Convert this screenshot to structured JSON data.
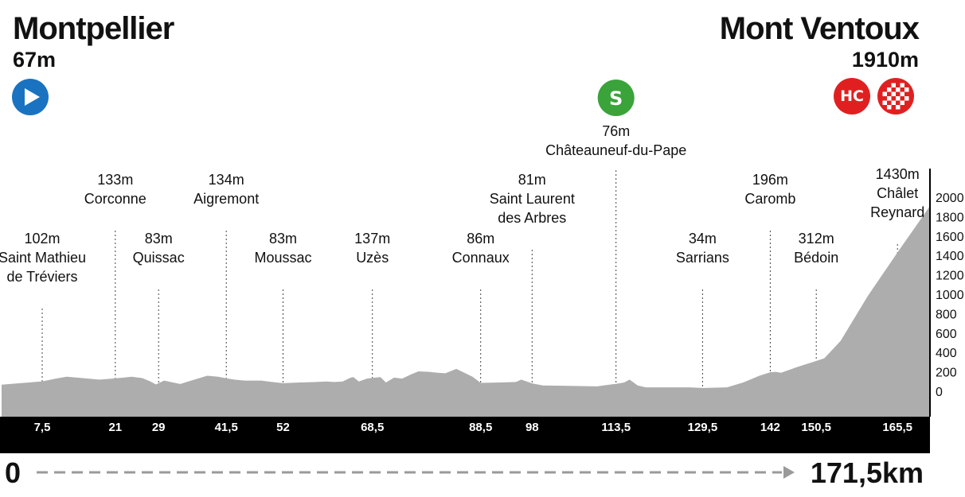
{
  "start": {
    "name": "Montpellier",
    "altitude": "67m",
    "icon": "start-play-icon",
    "color": "#1a73c0"
  },
  "finish": {
    "name": "Mont Ventoux",
    "altitude": "1910m",
    "category": "HC",
    "category_color": "#e02020",
    "icon": "checkered-flag-icon"
  },
  "sprint": {
    "label": "S",
    "color": "#3aa33a",
    "altitude": "76m",
    "name": "Châteauneuf-du-Pape",
    "km": 113.5
  },
  "distance": {
    "start_label": "0",
    "total_label": "171,5km"
  },
  "chart_data": {
    "type": "area",
    "title": "",
    "xlabel": "",
    "ylabel": "",
    "xlim": [
      0,
      171.5
    ],
    "ylim": [
      -250,
      2000
    ],
    "y_ticks": [
      "2000",
      "1800",
      "1600",
      "1400",
      "1200",
      "1000",
      "800",
      "600",
      "400",
      "200",
      "0"
    ],
    "x_tick_labels": [
      {
        "km": 7.5,
        "label": "7,5"
      },
      {
        "km": 21,
        "label": "21"
      },
      {
        "km": 29,
        "label": "29"
      },
      {
        "km": 41.5,
        "label": "41,5"
      },
      {
        "km": 52,
        "label": "52"
      },
      {
        "km": 68.5,
        "label": "68,5"
      },
      {
        "km": 88.5,
        "label": "88,5"
      },
      {
        "km": 98,
        "label": "98"
      },
      {
        "km": 113.5,
        "label": "113,5"
      },
      {
        "km": 129.5,
        "label": "129,5"
      },
      {
        "km": 142,
        "label": "142"
      },
      {
        "km": 150.5,
        "label": "150,5"
      },
      {
        "km": 165.5,
        "label": "165,5"
      }
    ],
    "waypoints": [
      {
        "km": 7.5,
        "lines": [
          "102m",
          "Saint Mathieu",
          "de Tréviers"
        ],
        "tier": "low"
      },
      {
        "km": 21,
        "lines": [
          "133m",
          "Corconne"
        ],
        "tier": "high"
      },
      {
        "km": 29,
        "lines": [
          "83m",
          "Quissac"
        ],
        "tier": "low"
      },
      {
        "km": 41.5,
        "lines": [
          "134m",
          "Aigremont"
        ],
        "tier": "high"
      },
      {
        "km": 52,
        "lines": [
          "83m",
          "Moussac"
        ],
        "tier": "low"
      },
      {
        "km": 68.5,
        "lines": [
          "137m",
          "Uzès"
        ],
        "tier": "low"
      },
      {
        "km": 88.5,
        "lines": [
          "86m",
          "Connaux"
        ],
        "tier": "low"
      },
      {
        "km": 98,
        "lines": [
          "81m",
          "Saint Laurent",
          "des Arbres"
        ],
        "tier": "high"
      },
      {
        "km": 113.5,
        "lines": [],
        "tier": "sprint"
      },
      {
        "km": 129.5,
        "lines": [
          "34m",
          "Sarrians"
        ],
        "tier": "low"
      },
      {
        "km": 142,
        "lines": [
          "196m",
          "Caromb"
        ],
        "tier": "high"
      },
      {
        "km": 150.5,
        "lines": [
          "312m",
          "Bédoin"
        ],
        "tier": "low"
      },
      {
        "km": 165.5,
        "lines": [
          "1430m",
          "Châlet",
          "Reynard"
        ],
        "tier": "top"
      }
    ],
    "profile": {
      "x": [
        0,
        7.5,
        10,
        12,
        14,
        18,
        20,
        21,
        22.5,
        24,
        26,
        27.5,
        28.5,
        29,
        30,
        33,
        35,
        38,
        40,
        41.5,
        43,
        45,
        48,
        50,
        52,
        55,
        58,
        60,
        61.5,
        63,
        64.5,
        65,
        66,
        67.5,
        68.5,
        70,
        71,
        72.5,
        74,
        75.5,
        77,
        79,
        80.5,
        82,
        84,
        87,
        88.5,
        92,
        95,
        96,
        98,
        100,
        105,
        110,
        112.5,
        113.5,
        115,
        116,
        117.5,
        119,
        122,
        127,
        129.5,
        134,
        137,
        140,
        142,
        143,
        144,
        147,
        150.5,
        152,
        155,
        160,
        165.5,
        171.5
      ],
      "y": [
        67,
        102,
        130,
        150,
        140,
        120,
        128,
        133,
        140,
        150,
        135,
        100,
        70,
        83,
        110,
        75,
        110,
        160,
        150,
        134,
        120,
        110,
        110,
        95,
        83,
        90,
        95,
        100,
        95,
        100,
        140,
        145,
        100,
        130,
        137,
        145,
        90,
        140,
        130,
        170,
        205,
        200,
        190,
        185,
        230,
        150,
        86,
        90,
        95,
        120,
        81,
        60,
        55,
        50,
        70,
        76,
        90,
        120,
        60,
        40,
        40,
        40,
        34,
        40,
        90,
        160,
        196,
        200,
        190,
        250,
        312,
        340,
        520,
        980,
        1430,
        1910
      ]
    }
  }
}
